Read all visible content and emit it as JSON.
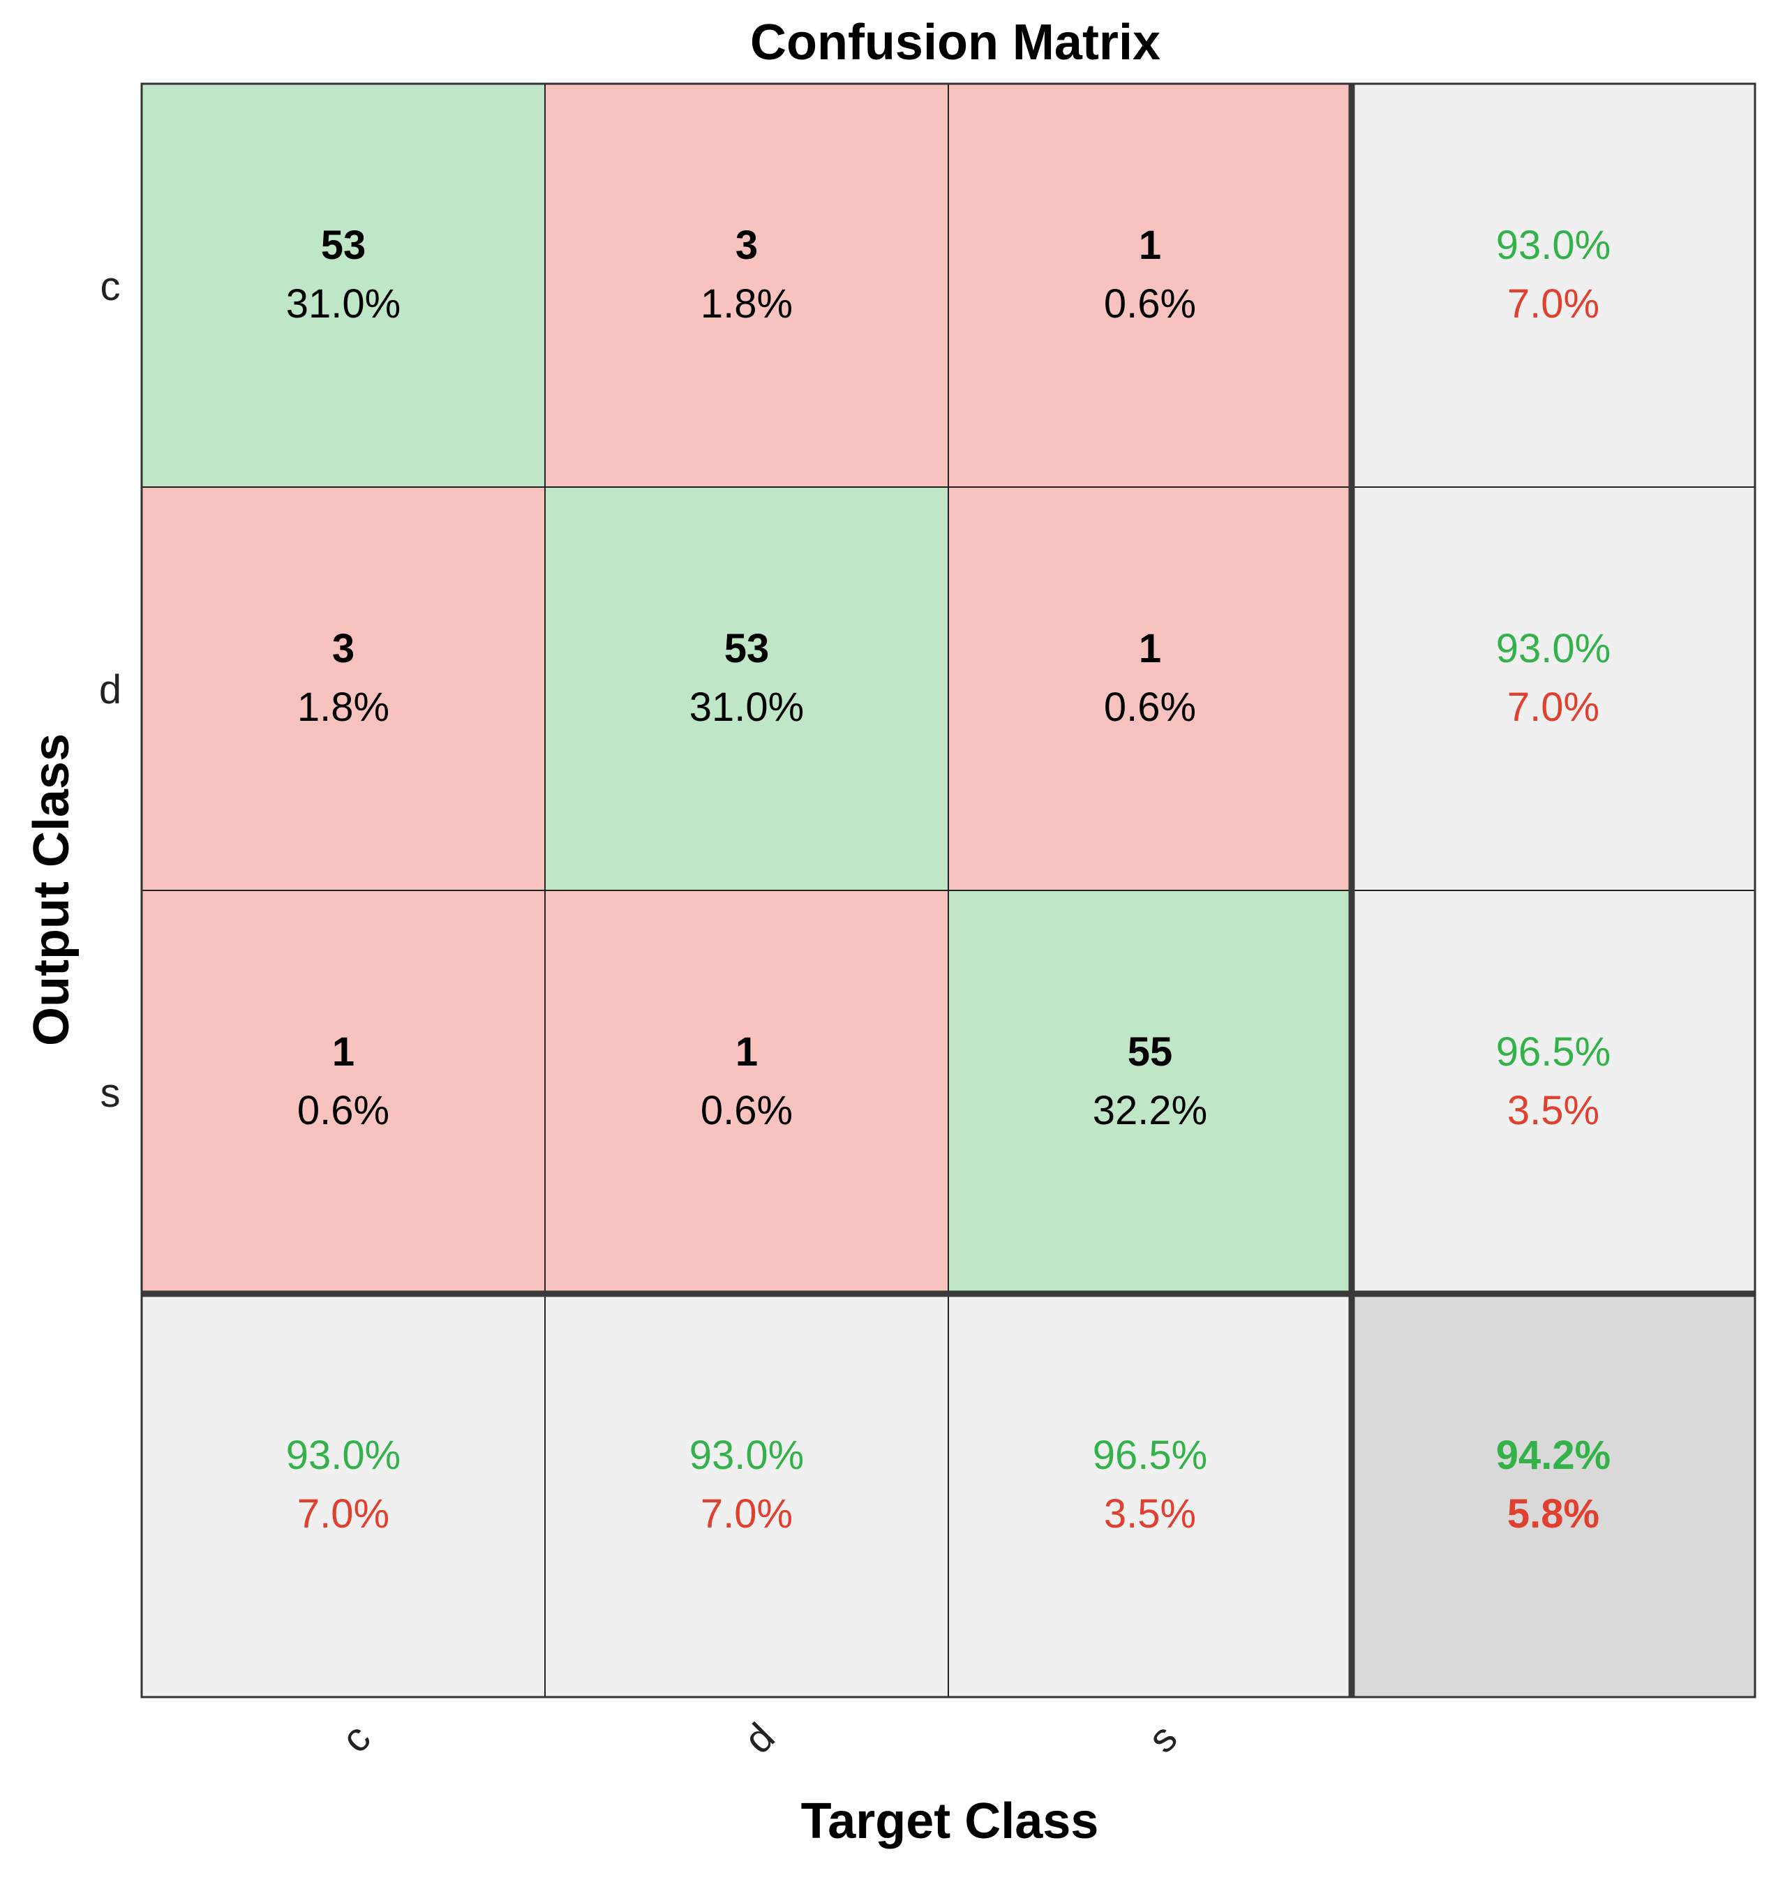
{
  "chart_data": {
    "type": "heatmap",
    "title": "Confusion Matrix",
    "xlabel": "Target Class",
    "ylabel": "Output Class",
    "row_labels": [
      "c",
      "d",
      "s"
    ],
    "col_labels": [
      "c",
      "d",
      "s"
    ],
    "cells": [
      [
        {
          "count": "53",
          "percent": "31.0%"
        },
        {
          "count": "3",
          "percent": "1.8%"
        },
        {
          "count": "1",
          "percent": "0.6%"
        }
      ],
      [
        {
          "count": "3",
          "percent": "1.8%"
        },
        {
          "count": "53",
          "percent": "31.0%"
        },
        {
          "count": "1",
          "percent": "0.6%"
        }
      ],
      [
        {
          "count": "1",
          "percent": "0.6%"
        },
        {
          "count": "1",
          "percent": "0.6%"
        },
        {
          "count": "55",
          "percent": "32.2%"
        }
      ]
    ],
    "row_summary": [
      {
        "correct": "93.0%",
        "incorrect": "7.0%"
      },
      {
        "correct": "93.0%",
        "incorrect": "7.0%"
      },
      {
        "correct": "96.5%",
        "incorrect": "3.5%"
      }
    ],
    "col_summary": [
      {
        "correct": "93.0%",
        "incorrect": "7.0%"
      },
      {
        "correct": "93.0%",
        "incorrect": "7.0%"
      },
      {
        "correct": "96.5%",
        "incorrect": "3.5%"
      }
    ],
    "overall": {
      "correct": "94.2%",
      "incorrect": "5.8%"
    },
    "colors": {
      "correct_cell": "#bfe6c6",
      "incorrect_cell": "#f8c2bf",
      "summary_cell": "#f0f0f0",
      "overall_cell": "#d9d9d9",
      "correct_text": "#33b24a",
      "incorrect_text": "#e0402f"
    }
  }
}
